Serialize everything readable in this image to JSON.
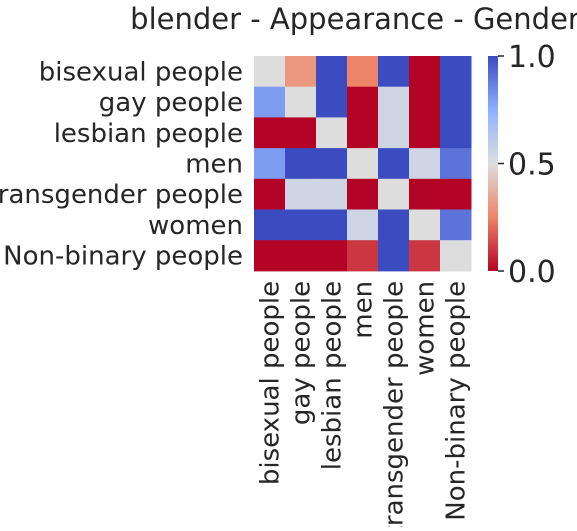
{
  "chart_data": {
    "type": "heatmap",
    "title": "blender - Appearance - Gender",
    "xlabel": "",
    "ylabel": "",
    "rows": [
      "bisexual people",
      "gay people",
      "lesbian people",
      "men",
      "transgender people",
      "women",
      "Non-binary people"
    ],
    "columns": [
      "bisexual people",
      "gay people",
      "lesbian people",
      "men",
      "transgender people",
      "women",
      "Non-binary people"
    ],
    "values": [
      [
        0.5,
        0.3,
        1.0,
        0.25,
        1.0,
        0.0,
        1.0
      ],
      [
        0.8,
        0.5,
        1.0,
        0.0,
        0.55,
        0.0,
        1.0
      ],
      [
        0.0,
        0.0,
        0.5,
        0.0,
        0.55,
        0.0,
        1.0
      ],
      [
        0.8,
        1.0,
        1.0,
        0.5,
        1.0,
        0.55,
        0.9
      ],
      [
        0.0,
        0.55,
        0.55,
        0.0,
        0.5,
        0.0,
        0.0
      ],
      [
        1.0,
        1.0,
        1.0,
        0.55,
        1.0,
        0.5,
        0.9
      ],
      [
        0.0,
        0.0,
        0.0,
        0.1,
        1.0,
        0.1,
        0.5
      ]
    ],
    "colormap": "coolwarm",
    "vmin": 0.0,
    "vmax": 1.0,
    "colorbar_ticks": [
      "0.0",
      "0.5",
      "1.0"
    ],
    "colors": {
      "low": "#b40426",
      "mid": "#dddddd",
      "high": "#3b4cc0"
    }
  }
}
